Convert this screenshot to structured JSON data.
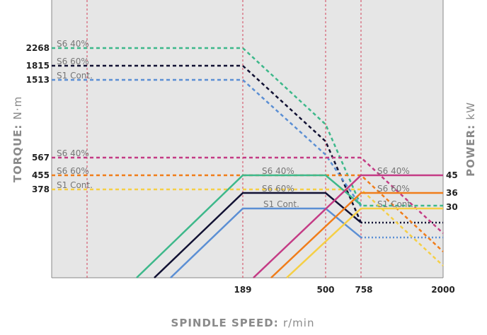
{
  "chart_data": {
    "type": "line",
    "xlabel": "SPINDLE SPEED",
    "xunit": "r/min",
    "ylabel_left": "TORQUE",
    "yunit_left": "N·m",
    "ylabel_right": "POWER",
    "yunit_right": "kW",
    "x_ticks": [
      "189",
      "500",
      "758",
      "2000"
    ],
    "colors": {
      "torque_s6_40": "#3db88a",
      "torque_s6_60": "#111133",
      "torque_s1": "#5b8fd4",
      "power_s6_40": "#c43b85",
      "power_s6_60": "#f07d1a",
      "power_s1": "#f5cf45",
      "background": "#e6e6e6"
    },
    "torque_levels": [
      {
        "value": "2268",
        "label": "S6 40%",
        "color_key": "torque_s6_40"
      },
      {
        "value": "1815",
        "label": "S6 60%",
        "color_key": "torque_s6_60"
      },
      {
        "value": "1513",
        "label": "S1 Cont.",
        "color_key": "torque_s1"
      },
      {
        "value": "567",
        "label": "S6 40%",
        "color_key": "power_s6_40"
      },
      {
        "value": "455",
        "label": "S6 60%",
        "color_key": "power_s6_60"
      },
      {
        "value": "378",
        "label": "S1 Cont.",
        "color_key": "power_s1"
      }
    ],
    "power_levels": [
      {
        "value": "45",
        "label": "S6 40%",
        "color_key": "power_s6_40"
      },
      {
        "value": "36",
        "label": "S6 60%",
        "color_key": "power_s6_60"
      },
      {
        "value": "30",
        "label": "S1 Cont.",
        "color_key": "power_s1"
      }
    ],
    "power_curve_labels": [
      {
        "label": "S6 40%",
        "color_key": "torque_s6_40"
      },
      {
        "label": "S6 60%",
        "color_key": "torque_s6_60"
      },
      {
        "label": "S1 Cont.",
        "color_key": "torque_s1"
      }
    ]
  }
}
